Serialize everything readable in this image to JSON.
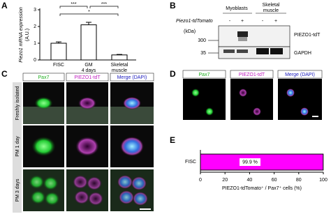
{
  "panel_labels": {
    "a": "A",
    "b": "B",
    "c": "C",
    "d": "D",
    "e": "E"
  },
  "chart_data": [
    {
      "type": "bar",
      "y_label": [
        "Piezo1 mRNA expression",
        "(A.U.)"
      ],
      "categories": [
        "FISC",
        "GM\n4 days",
        "Skeletal\nmuscle"
      ],
      "values": [
        1.0,
        2.1,
        0.3
      ],
      "errors": [
        0.08,
        0.15,
        0.03
      ],
      "color": "#ffffff",
      "ylim": [
        0,
        3
      ],
      "yticks": [
        0,
        1,
        2,
        3
      ],
      "significance": [
        "***",
        "*",
        "***"
      ]
    },
    {
      "type": "barh",
      "categories": [
        "FISC"
      ],
      "values": [
        99.9
      ],
      "value_labels": [
        "99.9 %"
      ],
      "color": "#ff00ff",
      "xlim": [
        0,
        100
      ],
      "xticks": [
        0,
        20,
        40,
        60,
        80,
        100
      ],
      "x_label": "PIEZO1-tdTomato⁺ / Pax7⁺ cells (%)"
    }
  ],
  "blot": {
    "groups": [
      "Myoblasts",
      "Skeletal\nmuscle"
    ],
    "row_label": "Piezo1-tdTomato",
    "lanes": [
      "-",
      "+",
      "-",
      "+"
    ],
    "unit": "(kDa)",
    "markers": [
      "300",
      "35"
    ],
    "bands": [
      "PIEZO1-tdT",
      "GAPDH"
    ]
  },
  "panel_c": {
    "columns": [
      "Pax7",
      "PIEZO1-tdT",
      "Merge (DAPI)"
    ],
    "rows": [
      "Freshly isolated",
      "PM 1 day",
      "PM 3 days"
    ]
  },
  "panel_d": {
    "columns": [
      "Pax7",
      "PIEZO1-tdT",
      "Merge (DAPI)"
    ]
  }
}
